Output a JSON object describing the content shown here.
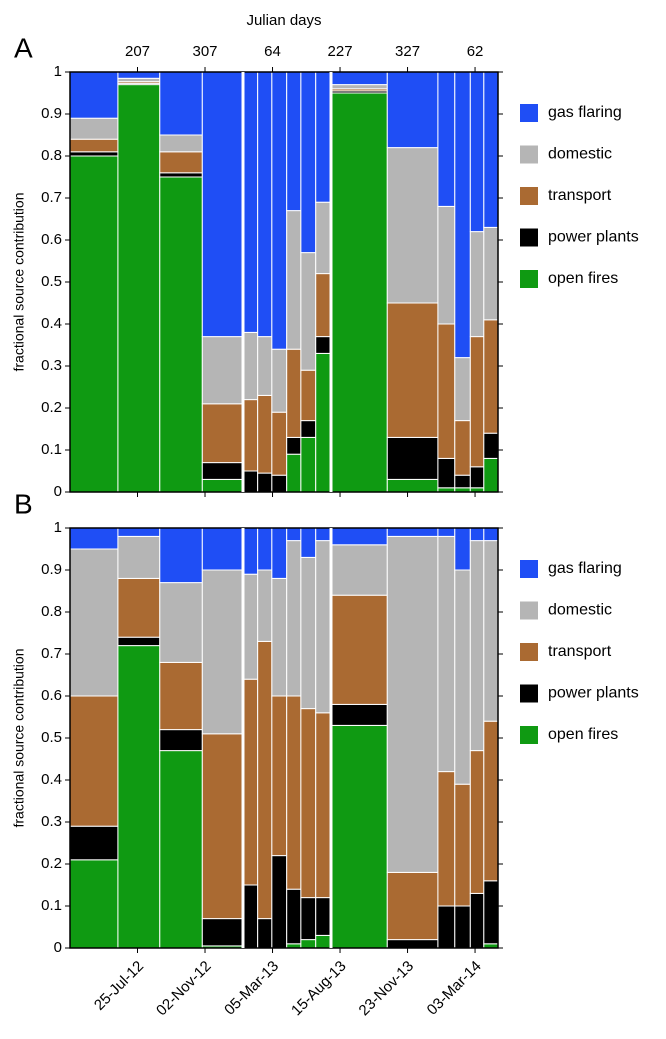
{
  "chart_data": [
    {
      "type": "histogram",
      "stacked": true,
      "label": "A",
      "ylabel": "fractional source contribution",
      "x2label": "Julian days",
      "x2ticks": [
        {
          "value": 1,
          "label": "207"
        },
        {
          "value": 2,
          "label": "307"
        },
        {
          "value": 3,
          "label": "64"
        },
        {
          "value": 4,
          "label": "227"
        },
        {
          "value": 5,
          "label": "327"
        },
        {
          "value": 6,
          "label": "62"
        }
      ],
      "xlim": [
        0,
        6.34
      ],
      "ylim": [
        0,
        1
      ],
      "yticks": [
        0,
        0.1,
        0.2,
        0.3,
        0.4,
        0.5,
        0.6,
        0.7,
        0.8,
        0.9,
        1
      ],
      "bins": [
        0,
        0.71,
        1.33,
        1.96,
        2.56,
        2.78,
        2.99,
        3.21,
        3.42,
        3.64,
        3.87,
        4.7,
        5.45,
        5.7,
        5.93,
        6.13,
        6.34
      ],
      "series": [
        {
          "name": "gas flaring",
          "color": "#1f4ef5",
          "values": [
            0.11,
            0.015,
            0.15,
            0.63,
            0.62,
            0.63,
            0.66,
            0.33,
            0.43,
            0.31,
            0.03,
            0.18,
            0.32,
            0.68,
            0.38,
            0.37
          ]
        },
        {
          "name": "domestic",
          "color": "#b5b5b5",
          "values": [
            0.05,
            0.008,
            0.04,
            0.16,
            0.16,
            0.14,
            0.15,
            0.33,
            0.28,
            0.17,
            0.01,
            0.37,
            0.28,
            0.15,
            0.25,
            0.22
          ]
        },
        {
          "name": "transport",
          "color": "#aa6a32",
          "values": [
            0.03,
            0.004,
            0.05,
            0.14,
            0.17,
            0.185,
            0.15,
            0.21,
            0.12,
            0.15,
            0.005,
            0.32,
            0.32,
            0.13,
            0.31,
            0.27
          ]
        },
        {
          "name": "power plants",
          "color": "#000000",
          "values": [
            0.01,
            0.003,
            0.01,
            0.04,
            0.05,
            0.045,
            0.04,
            0.04,
            0.04,
            0.04,
            0.005,
            0.1,
            0.07,
            0.03,
            0.05,
            0.06
          ]
        },
        {
          "name": "open fires",
          "color": "#0f9a12",
          "values": [
            0.8,
            0.97,
            0.75,
            0.03,
            0,
            0,
            0,
            0.09,
            0.13,
            0.33,
            0.95,
            0.03,
            0.01,
            0.01,
            0.01,
            0.08
          ]
        }
      ]
    },
    {
      "type": "histogram",
      "stacked": true,
      "label": "B",
      "ylabel": "fractional source contribution",
      "xticks": [
        {
          "value": 1,
          "label": "25-Jul-12"
        },
        {
          "value": 2,
          "label": "02-Nov-12"
        },
        {
          "value": 3,
          "label": "05-Mar-13"
        },
        {
          "value": 4,
          "label": "15-Aug-13"
        },
        {
          "value": 5,
          "label": "23-Nov-13"
        },
        {
          "value": 6,
          "label": "03-Mar-14"
        }
      ],
      "xlim": [
        0,
        6.34
      ],
      "ylim": [
        0,
        1
      ],
      "yticks": [
        0,
        0.1,
        0.2,
        0.3,
        0.4,
        0.5,
        0.6,
        0.7,
        0.8,
        0.9,
        1
      ],
      "bins": [
        0,
        0.71,
        1.33,
        1.96,
        2.56,
        2.78,
        2.99,
        3.21,
        3.42,
        3.64,
        3.87,
        4.7,
        5.45,
        5.7,
        5.93,
        6.13,
        6.34
      ],
      "series": [
        {
          "name": "gas flaring",
          "color": "#1f4ef5",
          "values": [
            0.05,
            0.02,
            0.13,
            0.1,
            0.11,
            0.1,
            0.12,
            0.03,
            0.07,
            0.03,
            0.04,
            0.02,
            0.02,
            0.1,
            0.03,
            0.03
          ]
        },
        {
          "name": "domestic",
          "color": "#b5b5b5",
          "values": [
            0.35,
            0.1,
            0.19,
            0.39,
            0.25,
            0.17,
            0.28,
            0.37,
            0.36,
            0.41,
            0.12,
            0.8,
            0.56,
            0.51,
            0.5,
            0.43
          ]
        },
        {
          "name": "transport",
          "color": "#aa6a32",
          "values": [
            0.31,
            0.14,
            0.16,
            0.44,
            0.49,
            0.66,
            0.38,
            0.46,
            0.45,
            0.44,
            0.26,
            0.16,
            0.32,
            0.29,
            0.34,
            0.38
          ]
        },
        {
          "name": "power plants",
          "color": "#000000",
          "values": [
            0.08,
            0.02,
            0.05,
            0.065,
            0.15,
            0.07,
            0.22,
            0.13,
            0.1,
            0.09,
            0.05,
            0.02,
            0.1,
            0.1,
            0.13,
            0.15
          ]
        },
        {
          "name": "open fires",
          "color": "#0f9a12",
          "values": [
            0.21,
            0.72,
            0.47,
            0.005,
            0,
            0,
            0,
            0.01,
            0.02,
            0.03,
            0.53,
            0,
            0,
            0,
            0,
            0.01
          ]
        }
      ]
    }
  ]
}
